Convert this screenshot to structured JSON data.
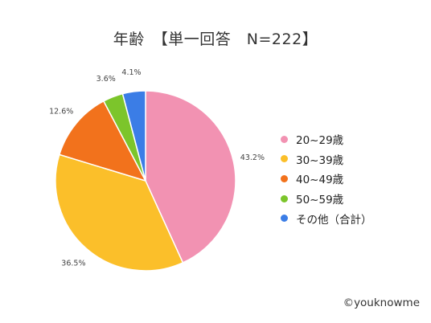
{
  "chart_data": {
    "type": "pie",
    "title": "年齢　【単一回答　N=222】",
    "slices": [
      {
        "label": "20~29歳",
        "value": 43.2,
        "value_label": "43.2%",
        "color": "#F292B2"
      },
      {
        "label": "30~39歳",
        "value": 36.5,
        "value_label": "36.5%",
        "color": "#FBBF2A"
      },
      {
        "label": "40~49歳",
        "value": 12.6,
        "value_label": "12.6%",
        "color": "#F2721C"
      },
      {
        "label": "50~59歳",
        "value": 3.6,
        "value_label": "3.6%",
        "color": "#7CC52B"
      },
      {
        "label": "その他（合計）",
        "value": 4.1,
        "value_label": "4.1%",
        "color": "#3B7DE6"
      }
    ],
    "legend_position": "right"
  },
  "footer": {
    "copyright": "©youknowme"
  }
}
